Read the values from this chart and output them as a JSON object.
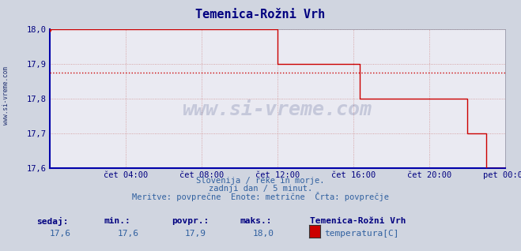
{
  "title": "Temenica-Rožni Vrh",
  "bg_color": "#d0d5e0",
  "plot_bg_color": "#eaeaf2",
  "grid_color": "#c8c8d8",
  "line_color": "#cc0000",
  "avg_line_color": "#cc0000",
  "avg_value": 17.875,
  "ylim": [
    17.6,
    18.0
  ],
  "yticks": [
    17.6,
    17.7,
    17.8,
    17.9,
    18.0
  ],
  "ytick_labels": [
    "17,6",
    "17,7",
    "17,8",
    "17,9",
    "18,0"
  ],
  "xtick_labels": [
    "čet 04:00",
    "čet 08:00",
    "čet 12:00",
    "čet 16:00",
    "čet 20:00",
    "pet 00:00"
  ],
  "xtick_positions": [
    0.1667,
    0.3333,
    0.5,
    0.6667,
    0.8333,
    1.0
  ],
  "subtitle1": "Slovenija / reke in morje.",
  "subtitle2": "zadnji dan / 5 minut.",
  "subtitle3": "Meritve: povprečne  Enote: metrične  Črta: povprečje",
  "label_sedaj": "sedaj:",
  "label_min": "min.:",
  "label_povpr": "povpr.:",
  "label_maks": "maks.:",
  "val_sedaj": "17,6",
  "val_min": "17,6",
  "val_povpr": "17,9",
  "val_maks": "18,0",
  "legend_station": "Temenica-Rožni Vrh",
  "legend_param": "temperatura[C]",
  "legend_color": "#cc0000",
  "watermark": "www.si-vreme.com",
  "watermark_color": "#203070",
  "left_label": "www.si-vreme.com",
  "left_label_color": "#203070",
  "data_x": [
    0.0,
    0.014,
    0.028,
    0.042,
    0.056,
    0.069,
    0.083,
    0.097,
    0.111,
    0.125,
    0.139,
    0.153,
    0.167,
    0.181,
    0.194,
    0.208,
    0.222,
    0.236,
    0.25,
    0.264,
    0.278,
    0.292,
    0.306,
    0.319,
    0.333,
    0.347,
    0.361,
    0.375,
    0.389,
    0.403,
    0.417,
    0.431,
    0.444,
    0.458,
    0.472,
    0.486,
    0.5,
    0.514,
    0.528,
    0.542,
    0.556,
    0.569,
    0.583,
    0.597,
    0.611,
    0.625,
    0.639,
    0.653,
    0.667,
    0.681,
    0.694,
    0.708,
    0.722,
    0.736,
    0.75,
    0.764,
    0.778,
    0.792,
    0.806,
    0.819,
    0.833,
    0.847,
    0.861,
    0.875,
    0.889,
    0.903,
    0.917,
    0.931,
    0.944,
    0.958,
    0.972,
    0.986,
    1.0
  ],
  "data_y": [
    18.0,
    18.0,
    18.0,
    18.0,
    18.0,
    18.0,
    18.0,
    18.0,
    18.0,
    18.0,
    18.0,
    18.0,
    18.0,
    18.0,
    18.0,
    18.0,
    18.0,
    18.0,
    18.0,
    18.0,
    18.0,
    18.0,
    18.0,
    18.0,
    18.0,
    18.0,
    18.0,
    18.0,
    18.0,
    18.0,
    18.0,
    18.0,
    18.0,
    18.0,
    18.0,
    18.0,
    17.9,
    17.9,
    17.9,
    17.9,
    17.9,
    17.9,
    17.9,
    17.9,
    17.9,
    17.9,
    17.9,
    17.9,
    17.9,
    17.8,
    17.8,
    17.8,
    17.8,
    17.8,
    17.8,
    17.8,
    17.8,
    17.8,
    17.8,
    17.8,
    17.8,
    17.8,
    17.8,
    17.8,
    17.8,
    17.8,
    17.7,
    17.7,
    17.7,
    17.6,
    17.6,
    17.6,
    17.6
  ]
}
